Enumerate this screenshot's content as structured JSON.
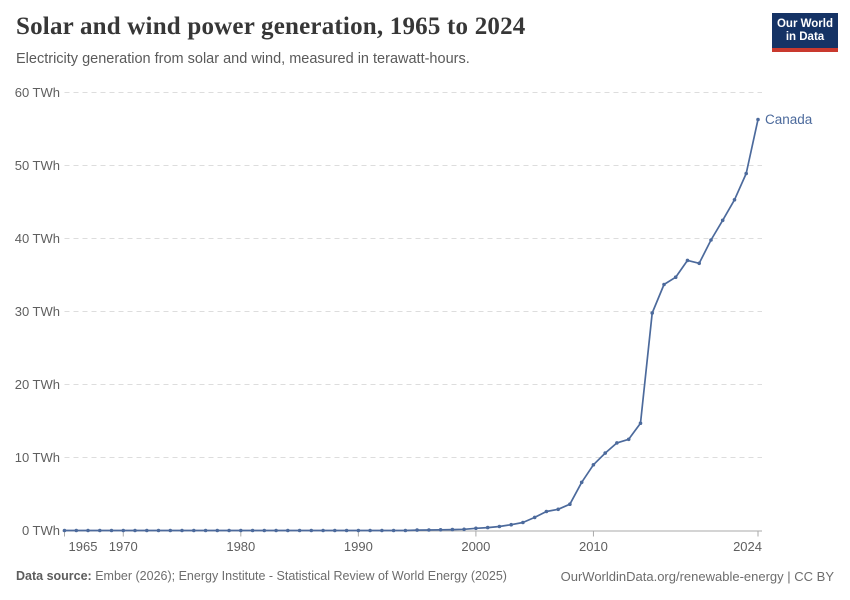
{
  "header": {
    "title": "Solar and wind power generation, 1965 to 2024",
    "subtitle": "Electricity generation from solar and wind, measured in terawatt-hours."
  },
  "logo": {
    "line1": "Our World",
    "line2": "in Data"
  },
  "colors": {
    "line": "#4c6a9c",
    "grid": "#dddddd",
    "axis": "#aaaaaa",
    "tick_text": "#5f5f5f",
    "logo_bg": "#153365",
    "logo_accent": "#c9392e"
  },
  "chart_data": {
    "type": "line",
    "title": "Solar and wind power generation, 1965 to 2024",
    "subtitle": "Electricity generation from solar and wind, measured in terawatt-hours.",
    "unit": "TWh",
    "xlim": [
      1965,
      2024
    ],
    "ylim": [
      0,
      60
    ],
    "grid": "horizontal-dashed",
    "legend_position": "end-of-line-label",
    "yticks": [
      {
        "value": 0,
        "label": "0 TWh"
      },
      {
        "value": 10,
        "label": "10 TWh"
      },
      {
        "value": 20,
        "label": "20 TWh"
      },
      {
        "value": 30,
        "label": "30 TWh"
      },
      {
        "value": 40,
        "label": "40 TWh"
      },
      {
        "value": 50,
        "label": "50 TWh"
      },
      {
        "value": 60,
        "label": "60 TWh"
      }
    ],
    "xticks": [
      {
        "value": 1965,
        "label": "1965"
      },
      {
        "value": 1970,
        "label": "1970"
      },
      {
        "value": 1980,
        "label": "1980"
      },
      {
        "value": 1990,
        "label": "1990"
      },
      {
        "value": 2000,
        "label": "2000"
      },
      {
        "value": 2010,
        "label": "2010"
      },
      {
        "value": 2024,
        "label": "2024"
      }
    ],
    "series": [
      {
        "name": "Canada",
        "color": "#4c6a9c",
        "points": [
          [
            1965,
            0
          ],
          [
            1966,
            0
          ],
          [
            1967,
            0
          ],
          [
            1968,
            0
          ],
          [
            1969,
            0
          ],
          [
            1970,
            0
          ],
          [
            1971,
            0
          ],
          [
            1972,
            0
          ],
          [
            1973,
            0
          ],
          [
            1974,
            0
          ],
          [
            1975,
            0
          ],
          [
            1976,
            0
          ],
          [
            1977,
            0
          ],
          [
            1978,
            0
          ],
          [
            1979,
            0
          ],
          [
            1980,
            0
          ],
          [
            1981,
            0
          ],
          [
            1982,
            0
          ],
          [
            1983,
            0
          ],
          [
            1984,
            0
          ],
          [
            1985,
            0
          ],
          [
            1986,
            0
          ],
          [
            1987,
            0
          ],
          [
            1988,
            0
          ],
          [
            1989,
            0
          ],
          [
            1990,
            0
          ],
          [
            1991,
            0
          ],
          [
            1992,
            0
          ],
          [
            1993,
            0
          ],
          [
            1994,
            0
          ],
          [
            1995,
            0.05
          ],
          [
            1996,
            0.07
          ],
          [
            1997,
            0.09
          ],
          [
            1998,
            0.12
          ],
          [
            1999,
            0.17
          ],
          [
            2000,
            0.3
          ],
          [
            2001,
            0.4
          ],
          [
            2002,
            0.55
          ],
          [
            2003,
            0.8
          ],
          [
            2004,
            1.1
          ],
          [
            2005,
            1.8
          ],
          [
            2006,
            2.6
          ],
          [
            2007,
            2.9
          ],
          [
            2008,
            3.6
          ],
          [
            2009,
            6.6
          ],
          [
            2010,
            9.0
          ],
          [
            2011,
            10.6
          ],
          [
            2012,
            12.0
          ],
          [
            2013,
            12.5
          ],
          [
            2014,
            14.7
          ],
          [
            2015,
            29.8
          ],
          [
            2016,
            33.7
          ],
          [
            2017,
            34.7
          ],
          [
            2018,
            37.0
          ],
          [
            2019,
            36.6
          ],
          [
            2020,
            39.8
          ],
          [
            2021,
            42.5
          ],
          [
            2022,
            45.3
          ],
          [
            2023,
            48.9
          ],
          [
            2024,
            56.3
          ]
        ]
      }
    ]
  },
  "footer": {
    "source_label": "Data source:",
    "source_text": "Ember (2026); Energy Institute - Statistical Review of World Energy (2025)",
    "link_text": "OurWorldinData.org/renewable-energy | CC BY"
  }
}
